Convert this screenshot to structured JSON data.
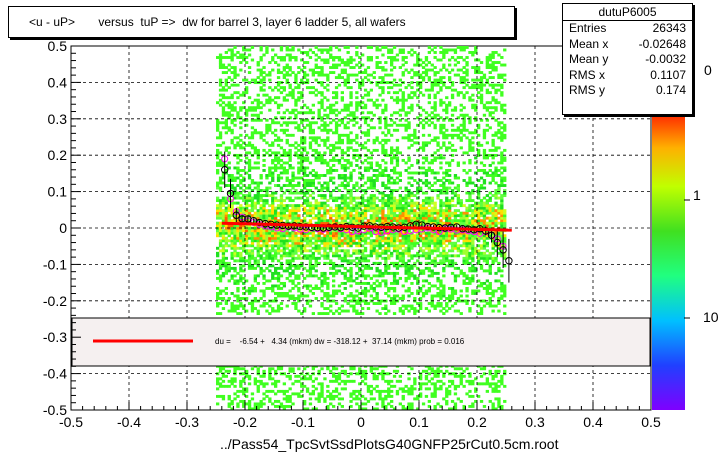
{
  "title": "<u - uP>       versus  tuP =>  dw for barrel 3, layer 6 ladder 5, all wafers",
  "xlabel": "../Pass54_TpcSvtSsdPlotsG40GNFP25rCut0.5cm.root",
  "stats": {
    "name": "dutuP6005",
    "rows": [
      {
        "label": "Entries",
        "value": "26343"
      },
      {
        "label": "Mean x",
        "value": "-0.02648"
      },
      {
        "label": "Mean y",
        "value": "-0.0032"
      },
      {
        "label": "RMS x",
        "value": "0.1107"
      },
      {
        "label": "RMS y",
        "value": "0.174"
      }
    ]
  },
  "fit_legend": "du =    -6.54 +   4.34 (mkm) dw = -318.12 +  37.14 (mkm) prob = 0.016",
  "colorbar": {
    "ticks": [
      "1",
      "10"
    ]
  },
  "colors": {
    "fit_line": "#ff0000",
    "marker_black": "#000000",
    "marker_magenta": "#ff00ff",
    "legend_bg": "#f5f0f0"
  },
  "chart_data": {
    "type": "heatmap",
    "xlim": [
      -0.5,
      0.5
    ],
    "ylim": [
      -0.5,
      0.5
    ],
    "x_ticks": [
      "-0.5",
      "-0.4",
      "-0.3",
      "-0.2",
      "-0.1",
      "0",
      "0.1",
      "0.2",
      "0.3",
      "0.4",
      "0.5"
    ],
    "y_ticks": [
      "-0.5",
      "-0.4",
      "-0.3",
      "-0.2",
      "-0.1",
      "0",
      "0.1",
      "0.2",
      "0.3",
      "0.4",
      "0.5"
    ],
    "grid": true,
    "fill_x_range": [
      -0.25,
      0.25
    ],
    "fit_line": {
      "x": [
        -0.24,
        0.26
      ],
      "y": [
        0.013,
        -0.006
      ]
    },
    "profile_black": {
      "x": [
        -0.235,
        -0.225,
        -0.215,
        -0.205,
        -0.195,
        -0.185,
        -0.175,
        -0.165,
        -0.155,
        -0.145,
        -0.135,
        -0.125,
        -0.115,
        -0.105,
        -0.095,
        -0.085,
        -0.075,
        -0.065,
        -0.055,
        -0.045,
        -0.035,
        -0.025,
        -0.015,
        -0.005,
        0.005,
        0.015,
        0.025,
        0.035,
        0.045,
        0.055,
        0.065,
        0.075,
        0.085,
        0.095,
        0.105,
        0.115,
        0.125,
        0.135,
        0.145,
        0.155,
        0.165,
        0.175,
        0.185,
        0.195,
        0.205,
        0.215,
        0.225,
        0.235,
        0.245,
        0.255
      ],
      "y": [
        0.16,
        0.095,
        0.035,
        0.025,
        0.025,
        0.02,
        0.015,
        0.012,
        0.01,
        0.008,
        0.007,
        0.005,
        0.006,
        0.004,
        0.003,
        0.002,
        0.001,
        0.0,
        0.002,
        0.003,
        0.001,
        0.004,
        0.002,
        0.0,
        0.005,
        0.006,
        0.003,
        0.002,
        0.004,
        0.003,
        0.0,
        0.002,
        0.006,
        0.01,
        0.008,
        0.004,
        0.003,
        0.001,
        0.0,
        0.002,
        0.003,
        -0.002,
        -0.003,
        -0.005,
        -0.002,
        -0.008,
        -0.02,
        -0.04,
        -0.06,
        -0.09
      ],
      "err": [
        0.05,
        0.04,
        0.02,
        0.01,
        0.008,
        0.007,
        0.006,
        0.006,
        0.005,
        0.005,
        0.005,
        0.005,
        0.005,
        0.005,
        0.005,
        0.005,
        0.005,
        0.005,
        0.005,
        0.005,
        0.005,
        0.005,
        0.005,
        0.005,
        0.005,
        0.005,
        0.005,
        0.005,
        0.005,
        0.005,
        0.005,
        0.005,
        0.005,
        0.005,
        0.005,
        0.005,
        0.005,
        0.005,
        0.005,
        0.005,
        0.006,
        0.006,
        0.007,
        0.008,
        0.01,
        0.012,
        0.02,
        0.04,
        0.05,
        0.06
      ]
    },
    "profile_magenta": {
      "x": [
        -0.235,
        -0.225,
        -0.215,
        -0.205,
        -0.195,
        -0.185,
        -0.175,
        -0.165,
        -0.155,
        -0.145,
        -0.135,
        -0.125,
        -0.115,
        -0.105,
        -0.095,
        -0.085,
        -0.075,
        -0.065,
        -0.055,
        -0.045,
        -0.035,
        -0.025,
        -0.015,
        -0.005,
        0.005,
        0.015,
        0.025,
        0.035,
        0.045,
        0.055,
        0.065,
        0.075,
        0.085,
        0.095,
        0.105,
        0.115,
        0.125,
        0.135,
        0.145,
        0.155,
        0.165,
        0.175,
        0.185,
        0.195,
        0.205,
        0.215,
        0.225,
        0.235,
        0.245
      ],
      "y": [
        0.19,
        0.08,
        0.045,
        0.03,
        0.02,
        0.015,
        0.01,
        0.005,
        0.003,
        0.0,
        -0.002,
        0.003,
        0.0,
        -0.003,
        -0.005,
        0.0,
        -0.002,
        -0.004,
        0.0,
        0.003,
        -0.002,
        -0.005,
        -0.01,
        -0.008,
        -0.005,
        0.0,
        -0.01,
        -0.012,
        -0.008,
        -0.005,
        -0.003,
        -0.01,
        -0.008,
        -0.005,
        -0.003,
        0.0,
        -0.005,
        -0.01,
        -0.002,
        -0.003,
        -0.006,
        -0.005,
        -0.008,
        -0.01,
        -0.015,
        -0.01,
        -0.02,
        -0.03,
        -0.05
      ]
    }
  }
}
